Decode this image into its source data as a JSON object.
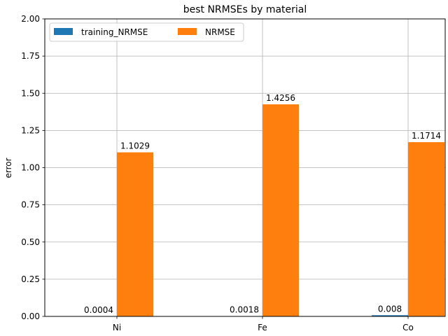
{
  "chart_data": {
    "type": "bar",
    "title": "best NRMSEs by material",
    "xlabel": "",
    "ylabel": "error",
    "categories": [
      "Ni",
      "Fe",
      "Co"
    ],
    "series": [
      {
        "name": "training_NRMSE",
        "values": [
          0.0004,
          0.0018,
          0.008
        ],
        "labels": [
          "0.0004",
          "0.0018",
          "0.008"
        ],
        "color": "#1f77b4"
      },
      {
        "name": "NRMSE",
        "values": [
          1.1029,
          1.4256,
          1.1714
        ],
        "labels": [
          "1.1029",
          "1.4256",
          "1.1714"
        ],
        "color": "#ff7f0e"
      }
    ],
    "ylim": [
      0,
      2.0
    ],
    "yticks": [
      "0.00",
      "0.25",
      "0.50",
      "0.75",
      "1.00",
      "1.25",
      "1.50",
      "1.75",
      "2.00"
    ],
    "grid": true,
    "legend_position": "upper-left"
  }
}
